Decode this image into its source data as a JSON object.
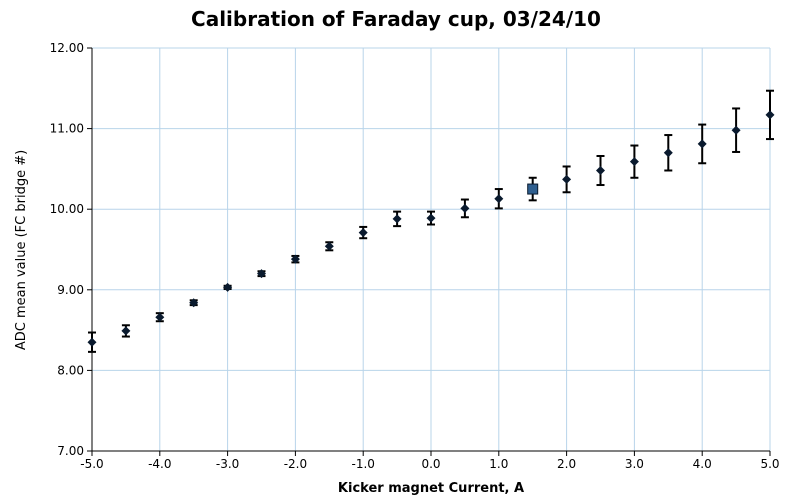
{
  "chart_data": {
    "type": "scatter",
    "title": "Calibration of Faraday cup, 03/24/10",
    "xlabel": "Kicker magnet Current, A",
    "ylabel": "ADC mean value (FC bridge #)",
    "xlim": [
      -5.0,
      5.0
    ],
    "ylim": [
      7.0,
      12.0
    ],
    "x_ticks": [
      "-5.0",
      "-4.0",
      "-3.0",
      "-2.0",
      "-1.0",
      "0.0",
      "1.0",
      "2.0",
      "3.0",
      "4.0",
      "5.0"
    ],
    "y_ticks": [
      "7.00",
      "8.00",
      "9.00",
      "10.00",
      "11.00",
      "12.00"
    ],
    "x_tick_values": [
      -5,
      -4,
      -3,
      -2,
      -1,
      0,
      1,
      2,
      3,
      4,
      5
    ],
    "y_tick_values": [
      7,
      8,
      9,
      10,
      11,
      12
    ],
    "grid": true,
    "series": [
      {
        "marker": "diamond",
        "color": "#0a1a2e",
        "x": [
          -5.0,
          -4.5,
          -4.0,
          -3.5,
          -3.0,
          -2.5,
          -2.0,
          -1.5,
          -1.0,
          -0.5,
          0.0,
          0.5,
          1.0,
          1.5,
          2.0,
          2.5,
          3.0,
          3.5,
          4.0,
          4.5,
          5.0
        ],
        "y": [
          8.35,
          8.49,
          8.66,
          8.84,
          9.03,
          9.2,
          9.38,
          9.54,
          9.71,
          9.88,
          9.89,
          10.01,
          10.13,
          10.25,
          10.37,
          10.48,
          10.59,
          10.7,
          10.81,
          10.98,
          11.17
        ],
        "error": [
          0.12,
          0.07,
          0.05,
          0.03,
          0.02,
          0.03,
          0.04,
          0.05,
          0.07,
          0.09,
          0.08,
          0.11,
          0.12,
          0.14,
          0.16,
          0.18,
          0.2,
          0.22,
          0.24,
          0.27,
          0.3
        ]
      }
    ],
    "highlight_point": {
      "x": 1.5,
      "y": 10.25,
      "color": "#2f5f8f"
    }
  }
}
